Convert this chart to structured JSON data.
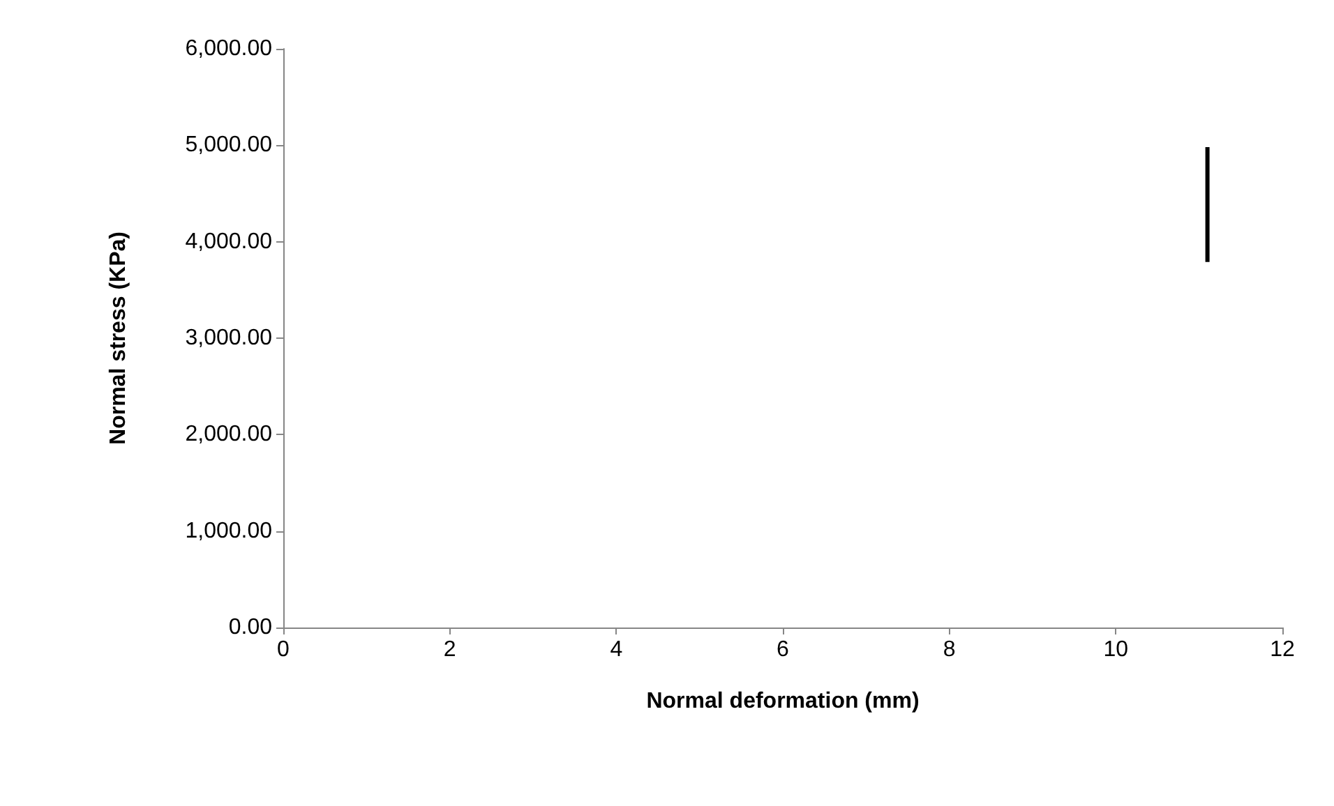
{
  "chart_data": {
    "type": "line",
    "xlabel": "Normal deformation (mm)",
    "ylabel": "Normal stress (KPa)",
    "x": [
      11.1,
      11.1
    ],
    "series": [
      {
        "color": "#000000",
        "values": [
          3790,
          4980
        ]
      }
    ],
    "xlim": [
      0,
      12
    ],
    "xticks": [
      0,
      2,
      4,
      6,
      8,
      10,
      12
    ],
    "ylim": [
      0,
      6000
    ],
    "yticks": [
      {
        "value": 0,
        "label": "0.00"
      },
      {
        "value": 1000,
        "label": "1,000.00"
      },
      {
        "value": 2000,
        "label": "2,000.00"
      },
      {
        "value": 3000,
        "label": "3,000.00"
      },
      {
        "value": 4000,
        "label": "4,000.00"
      },
      {
        "value": 5000,
        "label": "5,000.00"
      },
      {
        "value": 6000,
        "label": "6,000.00"
      }
    ],
    "grid": false,
    "marker": "none",
    "line_style": "solid"
  }
}
